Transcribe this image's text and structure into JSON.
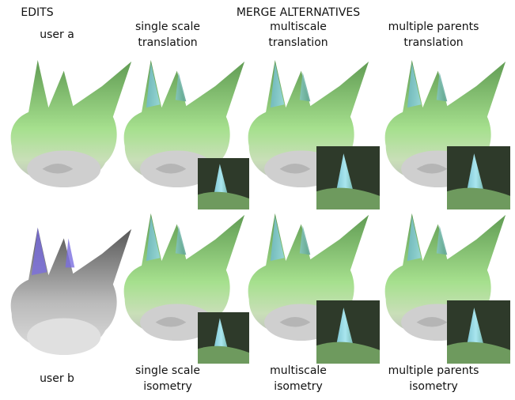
{
  "headers": {
    "edits": "EDITS",
    "merge": "MERGE ALTERNATIVES"
  },
  "top_labels": [
    [
      "user a"
    ],
    [
      "single scale",
      "translation"
    ],
    [
      "multiscale",
      "translation"
    ],
    [
      "multiple parents",
      "translation"
    ]
  ],
  "bottom_labels": [
    [
      "user b"
    ],
    [
      "single scale",
      "isometry"
    ],
    [
      "multiscale",
      "isometry"
    ],
    [
      "multiple parents",
      "isometry"
    ]
  ]
}
